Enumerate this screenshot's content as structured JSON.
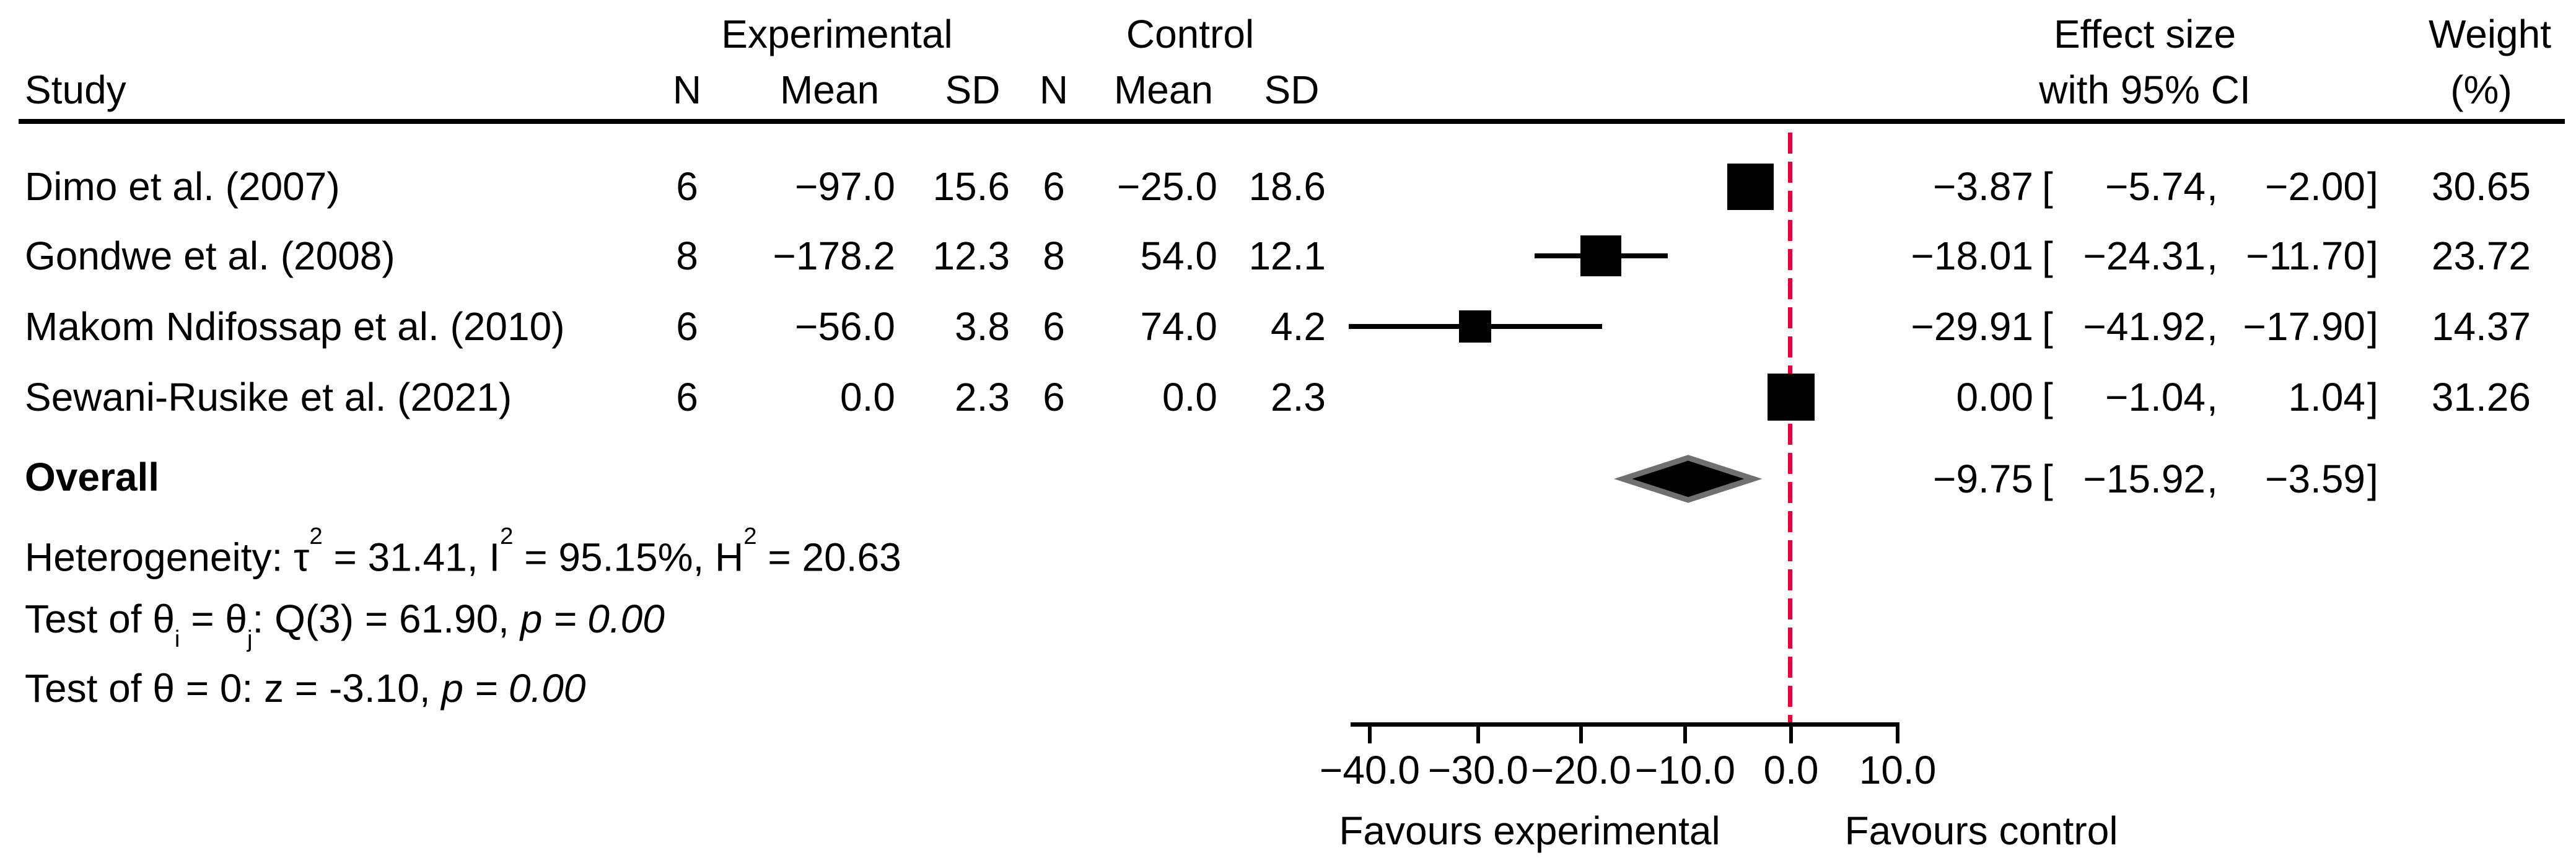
{
  "header": {
    "study": "Study",
    "group_exp": "Experimental",
    "group_ctrl": "Control",
    "col_n": "N",
    "col_mean": "Mean",
    "col_sd": "SD",
    "effect_line1": "Effect size",
    "effect_line2": "with 95% CI",
    "weight_line1": "Weight",
    "weight_line2": "(%)"
  },
  "symbols": {
    "open": "[",
    "comma": ",",
    "close": "]"
  },
  "rows": [
    {
      "study": "Dimo et al. (2007)",
      "n_exp": "6",
      "mean_exp": "−97.0",
      "sd_exp": "15.6",
      "n_ctrl": "6",
      "mean_ctrl": "−25.0",
      "sd_ctrl": "18.6",
      "es": "−3.87",
      "low": "−5.74",
      "high": "−2.00",
      "weight": "30.65"
    },
    {
      "study": "Gondwe et al. (2008)",
      "n_exp": "8",
      "mean_exp": "−178.2",
      "sd_exp": "12.3",
      "n_ctrl": "8",
      "mean_ctrl": "54.0",
      "sd_ctrl": "12.1",
      "es": "−18.01",
      "low": "−24.31",
      "high": "−11.70",
      "weight": "23.72"
    },
    {
      "study": "Makom Ndifossap et al. (2010)",
      "n_exp": "6",
      "mean_exp": "−56.0",
      "sd_exp": "3.8",
      "n_ctrl": "6",
      "mean_ctrl": "74.0",
      "sd_ctrl": "4.2",
      "es": "−29.91",
      "low": "−41.92",
      "high": "−17.90",
      "weight": "14.37"
    },
    {
      "study": "Sewani-Rusike et al. (2021)",
      "n_exp": "6",
      "mean_exp": "0.0",
      "sd_exp": "2.3",
      "n_ctrl": "6",
      "mean_ctrl": "0.0",
      "sd_ctrl": "2.3",
      "es": "0.00",
      "low": "−1.04",
      "high": "1.04",
      "weight": "31.26"
    }
  ],
  "overall": {
    "label": "Overall",
    "es": "−9.75",
    "low": "−15.92",
    "high": "−3.59"
  },
  "stats": {
    "heterogeneity": {
      "t1": "Heterogeneity: τ",
      "s1": "2",
      "t2": " = 31.41, I",
      "s2": "2",
      "t3": " = 95.15%, H",
      "s3": "2",
      "t4": " = 20.63"
    },
    "test_q": {
      "t1": "Test of θ",
      "b1": "i",
      "t2": " = θ",
      "b2": "j",
      "t3": ": Q(3) = 61.90, ",
      "p": "p = 0.00"
    },
    "test_z": {
      "t1": "Test of θ = 0: z = -3.10, ",
      "p": "p = 0.00"
    }
  },
  "axis": {
    "tick_labels": [
      "−40.0",
      "−30.0",
      "−20.0",
      "−10.0",
      "0.0",
      "10.0"
    ],
    "favours_left": "Favours experimental",
    "favours_right": "Favours control"
  },
  "chart_data": {
    "type": "scatter",
    "subtype": "forest",
    "title": "",
    "xlabel": "",
    "ylabel": "",
    "xlim": [
      -40,
      10
    ],
    "x_ticks": [
      -40,
      -30,
      -20,
      -10,
      0,
      10
    ],
    "ref_line": 0,
    "ref_line_color": "#e0063c",
    "marker_color": "#000000",
    "diamond_fill": "#000000",
    "diamond_border": "#707070",
    "studies": [
      {
        "label": "Dimo et al. (2007)",
        "n_exp": 6,
        "mean_exp": -97.0,
        "sd_exp": 15.6,
        "n_ctrl": 6,
        "mean_ctrl": -25.0,
        "sd_ctrl": 18.6,
        "es": -3.87,
        "ci": [
          -5.74,
          -2.0
        ],
        "weight": 30.65
      },
      {
        "label": "Gondwe et al. (2008)",
        "n_exp": 8,
        "mean_exp": -178.2,
        "sd_exp": 12.3,
        "n_ctrl": 8,
        "mean_ctrl": 54.0,
        "sd_ctrl": 12.1,
        "es": -18.01,
        "ci": [
          -24.31,
          -11.7
        ],
        "weight": 23.72
      },
      {
        "label": "Makom Ndifossap et al. (2010)",
        "n_exp": 6,
        "mean_exp": -56.0,
        "sd_exp": 3.8,
        "n_ctrl": 6,
        "mean_ctrl": 74.0,
        "sd_ctrl": 4.2,
        "es": -29.91,
        "ci": [
          -41.92,
          -17.9
        ],
        "weight": 14.37
      },
      {
        "label": "Sewani-Rusike et al. (2021)",
        "n_exp": 6,
        "mean_exp": 0.0,
        "sd_exp": 2.3,
        "n_ctrl": 6,
        "mean_ctrl": 0.0,
        "sd_ctrl": 2.3,
        "es": 0.0,
        "ci": [
          -1.04,
          1.04
        ],
        "weight": 31.26
      }
    ],
    "overall": {
      "es": -9.75,
      "ci": [
        -15.92,
        -3.59
      ]
    },
    "heterogeneity": {
      "tau2": 31.41,
      "I2_pct": 95.15,
      "H2": 20.63
    },
    "test_q": {
      "Q_df": 3,
      "Q": 61.9,
      "p": 0.0
    },
    "test_z": {
      "z": -3.1,
      "p": 0.0
    },
    "legend_position": "none",
    "grid": false
  }
}
